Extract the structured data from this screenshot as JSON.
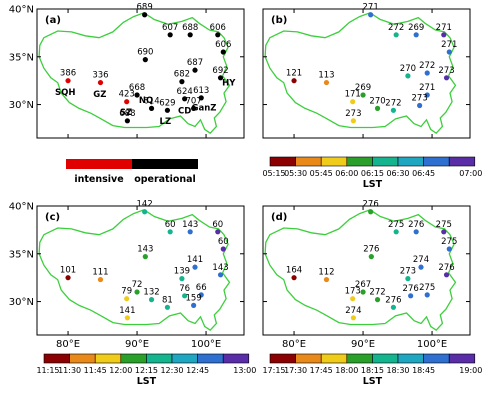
{
  "axes": {
    "lat_labels": [
      "40°N",
      "35°N",
      "30°N"
    ],
    "lon_labels": [
      "80°E",
      "90°E",
      "100°E"
    ],
    "lat_values": [
      40,
      35,
      30
    ],
    "lon_values": [
      80,
      90,
      100
    ]
  },
  "panels": [
    {
      "label": "(a)",
      "stations": [
        {
          "v": "689",
          "lon": 91.1,
          "lat": 39.4,
          "c": "#000000"
        },
        {
          "v": "607",
          "lon": 94.8,
          "lat": 37.3,
          "c": "#000000"
        },
        {
          "v": "688",
          "lon": 97.7,
          "lat": 37.3,
          "c": "#000000"
        },
        {
          "v": "606",
          "lon": 101.7,
          "lat": 37.3,
          "c": "#000000"
        },
        {
          "v": "606",
          "lon": 102.5,
          "lat": 35.5,
          "c": "#000000"
        },
        {
          "v": "690",
          "lon": 91.2,
          "lat": 34.7,
          "c": "#000000"
        },
        {
          "v": "386",
          "lon": 80.0,
          "lat": 32.5,
          "c": "#e00000"
        },
        {
          "v": "336",
          "lon": 84.7,
          "lat": 32.3,
          "c": "#e00000"
        },
        {
          "v": "687",
          "lon": 98.4,
          "lat": 33.6,
          "c": "#000000"
        },
        {
          "v": "682",
          "lon": 96.5,
          "lat": 32.4,
          "c": "#000000"
        },
        {
          "v": "692",
          "lon": 102.1,
          "lat": 32.8,
          "c": "#000000"
        },
        {
          "v": "668",
          "lon": 90.0,
          "lat": 31.0,
          "c": "#000000"
        },
        {
          "v": "423",
          "lon": 88.5,
          "lat": 30.3,
          "c": "#e00000"
        },
        {
          "v": "624",
          "lon": 96.9,
          "lat": 30.6,
          "c": "#000000"
        },
        {
          "v": "613",
          "lon": 99.3,
          "lat": 30.7,
          "c": "#000000"
        },
        {
          "v": "614",
          "lon": 92.1,
          "lat": 29.6,
          "c": "#000000"
        },
        {
          "v": "629",
          "lon": 94.4,
          "lat": 29.4,
          "c": "#000000"
        },
        {
          "v": "707",
          "lon": 98.2,
          "lat": 29.6,
          "c": "#000000"
        },
        {
          "v": "688",
          "lon": 88.6,
          "lat": 28.3,
          "c": "#000000"
        }
      ],
      "site_names": [
        "SQH",
        "GZ",
        "SZ",
        "NQ",
        "LZ",
        "CD",
        "GanZ",
        "HY"
      ],
      "legend": {
        "left": "intensive",
        "right": "operational",
        "colors": [
          "#e00000",
          "#000000"
        ]
      }
    },
    {
      "label": "(b)",
      "stations": [
        {
          "v": "271",
          "lon": 91.1,
          "lat": 39.4,
          "c": "#2e6fcf"
        },
        {
          "v": "272",
          "lon": 94.8,
          "lat": 37.3,
          "c": "#13b48e"
        },
        {
          "v": "269",
          "lon": 97.7,
          "lat": 37.3,
          "c": "#2e6fcf"
        },
        {
          "v": "271",
          "lon": 101.7,
          "lat": 37.3,
          "c": "#5a2da8"
        },
        {
          "v": "271",
          "lon": 102.5,
          "lat": 35.5,
          "c": "#2e6fcf"
        },
        {
          "v": "121",
          "lon": 80.0,
          "lat": 32.5,
          "c": "#8b0000"
        },
        {
          "v": "113",
          "lon": 84.7,
          "lat": 32.3,
          "c": "#e8891a"
        },
        {
          "v": "171",
          "lon": 88.5,
          "lat": 30.3,
          "c": "#f0cc1a"
        },
        {
          "v": "269",
          "lon": 90.0,
          "lat": 31.0,
          "c": "#2aa02a"
        },
        {
          "v": "270",
          "lon": 96.5,
          "lat": 33.0,
          "c": "#13b48e"
        },
        {
          "v": "272",
          "lon": 99.3,
          "lat": 33.3,
          "c": "#2e6fcf"
        },
        {
          "v": "273",
          "lon": 102.1,
          "lat": 32.8,
          "c": "#5a2da8"
        },
        {
          "v": "271",
          "lon": 99.3,
          "lat": 31.0,
          "c": "#2e6fcf"
        },
        {
          "v": "270",
          "lon": 92.1,
          "lat": 29.6,
          "c": "#2aa02a"
        },
        {
          "v": "272",
          "lon": 94.4,
          "lat": 29.4,
          "c": "#13b48e"
        },
        {
          "v": "273",
          "lon": 98.2,
          "lat": 29.9,
          "c": "#2e6fcf"
        },
        {
          "v": "273",
          "lon": 88.6,
          "lat": 28.3,
          "c": "#f0cc1a"
        }
      ],
      "colorbar": {
        "ticks": [
          "05:15",
          "05:30",
          "05:45",
          "06:00",
          "06:15",
          "06:30",
          "06:45",
          "07:00"
        ],
        "label": "LST"
      }
    },
    {
      "label": "(c)",
      "stations": [
        {
          "v": "142",
          "lon": 91.1,
          "lat": 39.4,
          "c": "#13b48e"
        },
        {
          "v": "60",
          "lon": 94.8,
          "lat": 37.3,
          "c": "#13b48e"
        },
        {
          "v": "143",
          "lon": 97.7,
          "lat": 37.3,
          "c": "#2e6fcf"
        },
        {
          "v": "60",
          "lon": 101.7,
          "lat": 37.3,
          "c": "#5a2da8"
        },
        {
          "v": "60",
          "lon": 102.5,
          "lat": 35.5,
          "c": "#5a2da8"
        },
        {
          "v": "143",
          "lon": 91.2,
          "lat": 34.7,
          "c": "#2aa02a"
        },
        {
          "v": "101",
          "lon": 80.0,
          "lat": 32.5,
          "c": "#8b0000"
        },
        {
          "v": "111",
          "lon": 84.7,
          "lat": 32.3,
          "c": "#e8891a"
        },
        {
          "v": "139",
          "lon": 96.5,
          "lat": 32.4,
          "c": "#13b48e"
        },
        {
          "v": "141",
          "lon": 98.4,
          "lat": 33.6,
          "c": "#2e6fcf"
        },
        {
          "v": "143",
          "lon": 102.1,
          "lat": 32.8,
          "c": "#2e6fcf"
        },
        {
          "v": "79",
          "lon": 88.5,
          "lat": 30.3,
          "c": "#f0cc1a"
        },
        {
          "v": "72",
          "lon": 90.0,
          "lat": 31.0,
          "c": "#2aa02a"
        },
        {
          "v": "132",
          "lon": 92.1,
          "lat": 30.2,
          "c": "#13b48e"
        },
        {
          "v": "76",
          "lon": 96.9,
          "lat": 30.6,
          "c": "#13b48e"
        },
        {
          "v": "66",
          "lon": 99.3,
          "lat": 30.7,
          "c": "#2e6fcf"
        },
        {
          "v": "81",
          "lon": 94.4,
          "lat": 29.4,
          "c": "#13b48e"
        },
        {
          "v": "159",
          "lon": 98.2,
          "lat": 29.6,
          "c": "#2e6fcf"
        },
        {
          "v": "141",
          "lon": 88.6,
          "lat": 28.3,
          "c": "#f0cc1a"
        }
      ],
      "colorbar": {
        "ticks": [
          "11:15",
          "11:30",
          "11:45",
          "12:00",
          "12:15",
          "12:30",
          "12:45",
          "13:00"
        ],
        "label": "LST"
      }
    },
    {
      "label": "(d)",
      "stations": [
        {
          "v": "276",
          "lon": 91.1,
          "lat": 39.4,
          "c": "#2aa02a"
        },
        {
          "v": "275",
          "lon": 94.8,
          "lat": 37.3,
          "c": "#13b48e"
        },
        {
          "v": "276",
          "lon": 97.7,
          "lat": 37.3,
          "c": "#2e6fcf"
        },
        {
          "v": "275",
          "lon": 101.7,
          "lat": 37.3,
          "c": "#5a2da8"
        },
        {
          "v": "275",
          "lon": 102.5,
          "lat": 35.5,
          "c": "#2e6fcf"
        },
        {
          "v": "276",
          "lon": 91.2,
          "lat": 34.7,
          "c": "#2aa02a"
        },
        {
          "v": "164",
          "lon": 80.0,
          "lat": 32.5,
          "c": "#8b0000"
        },
        {
          "v": "112",
          "lon": 84.7,
          "lat": 32.3,
          "c": "#e8891a"
        },
        {
          "v": "273",
          "lon": 96.5,
          "lat": 32.4,
          "c": "#13b48e"
        },
        {
          "v": "274",
          "lon": 98.4,
          "lat": 33.6,
          "c": "#2e6fcf"
        },
        {
          "v": "276",
          "lon": 102.1,
          "lat": 32.8,
          "c": "#5a2da8"
        },
        {
          "v": "173",
          "lon": 88.5,
          "lat": 30.3,
          "c": "#f0cc1a"
        },
        {
          "v": "267",
          "lon": 90.0,
          "lat": 31.0,
          "c": "#2aa02a"
        },
        {
          "v": "272",
          "lon": 92.1,
          "lat": 30.2,
          "c": "#2aa02a"
        },
        {
          "v": "276",
          "lon": 96.9,
          "lat": 30.6,
          "c": "#2e6fcf"
        },
        {
          "v": "275",
          "lon": 99.3,
          "lat": 30.7,
          "c": "#2e6fcf"
        },
        {
          "v": "276",
          "lon": 94.4,
          "lat": 29.4,
          "c": "#13b48e"
        },
        {
          "v": "274",
          "lon": 88.6,
          "lat": 28.3,
          "c": "#f0cc1a"
        }
      ],
      "colorbar": {
        "ticks": [
          "17:15",
          "17:30",
          "17:45",
          "18:00",
          "18:15",
          "18:30",
          "18:45",
          "19:00"
        ],
        "label": "LST"
      }
    }
  ],
  "colorbar_colors": [
    "#8b0000",
    "#e8891a",
    "#f0cc1a",
    "#2aa02a",
    "#13b48e",
    "#1fa6c0",
    "#2e6fcf",
    "#5a2da8"
  ]
}
